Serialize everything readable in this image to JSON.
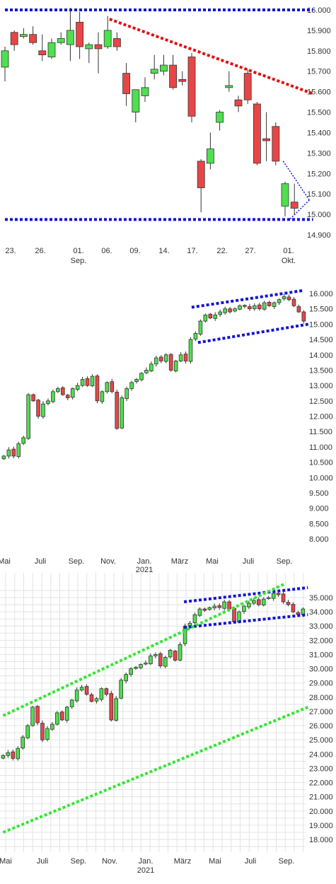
{
  "colors": {
    "up": "#4ee04e",
    "down": "#e84646",
    "blue_line": "#1414d2",
    "red_line": "#e01010",
    "green_line": "#33e633",
    "wick": "#333333"
  },
  "chart_data": [
    {
      "type": "candlestick",
      "y_tick_labels": [
        "16.000",
        "15.900",
        "15.800",
        "15.700",
        "15.600",
        "15.500",
        "15.400",
        "15.300",
        "15.200",
        "15.100",
        "15.000",
        "14.900"
      ],
      "ylim": [
        14900,
        16000
      ],
      "x_tick_labels": [
        "23.",
        "26.",
        "01.",
        "06.",
        "09.",
        "14.",
        "17.",
        "22.",
        "27.",
        "01."
      ],
      "x_sublabels": [
        "Sep.",
        "Okt."
      ],
      "grid": false,
      "candles": [
        {
          "o": 15720,
          "h": 15820,
          "l": 15650,
          "c": 15800
        },
        {
          "o": 15890,
          "h": 15900,
          "l": 15800,
          "c": 15830
        },
        {
          "o": 15870,
          "h": 15910,
          "l": 15860,
          "c": 15880
        },
        {
          "o": 15880,
          "h": 15920,
          "l": 15830,
          "c": 15840
        },
        {
          "o": 15800,
          "h": 15880,
          "l": 15750,
          "c": 15780
        },
        {
          "o": 15770,
          "h": 15860,
          "l": 15760,
          "c": 15840
        },
        {
          "o": 15840,
          "h": 15890,
          "l": 15830,
          "c": 15860
        },
        {
          "o": 15830,
          "h": 16010,
          "l": 15750,
          "c": 15900
        },
        {
          "o": 15940,
          "h": 15990,
          "l": 15760,
          "c": 15820
        },
        {
          "o": 15810,
          "h": 15840,
          "l": 15740,
          "c": 15830
        },
        {
          "o": 15830,
          "h": 15890,
          "l": 15690,
          "c": 15810
        },
        {
          "o": 15820,
          "h": 15970,
          "l": 15810,
          "c": 15900
        },
        {
          "o": 15860,
          "h": 15890,
          "l": 15800,
          "c": 15820
        },
        {
          "o": 15690,
          "h": 15740,
          "l": 15530,
          "c": 15590
        },
        {
          "o": 15500,
          "h": 15610,
          "l": 15450,
          "c": 15610
        },
        {
          "o": 15580,
          "h": 15670,
          "l": 15550,
          "c": 15620
        },
        {
          "o": 15690,
          "h": 15780,
          "l": 15660,
          "c": 15710
        },
        {
          "o": 15700,
          "h": 15780,
          "l": 15680,
          "c": 15730
        },
        {
          "o": 15730,
          "h": 15780,
          "l": 15610,
          "c": 15620
        },
        {
          "o": 15660,
          "h": 15700,
          "l": 15630,
          "c": 15650
        },
        {
          "o": 15770,
          "h": 15790,
          "l": 15450,
          "c": 15480
        },
        {
          "o": 15260,
          "h": 15270,
          "l": 15010,
          "c": 15130
        },
        {
          "o": 15250,
          "h": 15400,
          "l": 15220,
          "c": 15320
        },
        {
          "o": 15450,
          "h": 15510,
          "l": 15410,
          "c": 15500
        },
        {
          "o": 15620,
          "h": 15700,
          "l": 15600,
          "c": 15630
        },
        {
          "o": 15560,
          "h": 15580,
          "l": 15500,
          "c": 15530
        },
        {
          "o": 15690,
          "h": 15710,
          "l": 15540,
          "c": 15560
        },
        {
          "o": 15540,
          "h": 15550,
          "l": 15240,
          "c": 15250
        },
        {
          "o": 15370,
          "h": 15500,
          "l": 15260,
          "c": 15360
        },
        {
          "o": 15430,
          "h": 15450,
          "l": 15240,
          "c": 15260
        },
        {
          "o": 15040,
          "h": 15160,
          "l": 14990,
          "c": 15150
        },
        {
          "o": 15060,
          "h": 15150,
          "l": 15000,
          "c": 15030
        }
      ],
      "trendlines": [
        {
          "color": "blue",
          "from": [
            0,
            16000
          ],
          "to": [
            33,
            16000
          ]
        },
        {
          "color": "blue",
          "from": [
            0,
            14975
          ],
          "to": [
            33,
            14975
          ]
        },
        {
          "color": "red",
          "from": [
            11.2,
            15955
          ],
          "to": [
            33,
            15590
          ]
        },
        {
          "color": "blue",
          "from": [
            29.8,
            15260
          ],
          "to": [
            32.6,
            15070
          ]
        },
        {
          "color": "blue",
          "from": [
            32.6,
            15070
          ],
          "to": [
            30.5,
            14975
          ]
        }
      ]
    },
    {
      "type": "candlestick",
      "y_tick_labels": [
        "16.000",
        "15.500",
        "15.000",
        "14.500",
        "14.000",
        "13.500",
        "13.000",
        "12.500",
        "12.000",
        "11.500",
        "11.000",
        "10.500",
        "10.000",
        "9.500",
        "9.000",
        "8.500",
        "8.000"
      ],
      "ylim": [
        7500,
        16500
      ],
      "x_tick_labels": [
        "Mai",
        "Juli",
        "Sep.",
        "Nov.",
        "Jan.",
        "März",
        "Mai",
        "Juli",
        "Sep."
      ],
      "x_sublabels": [
        "2021"
      ],
      "grid": false,
      "closes": [
        10700,
        10900,
        10700,
        11100,
        11300,
        12700,
        12500,
        12000,
        12400,
        12500,
        12800,
        12900,
        12700,
        12600,
        12900,
        13000,
        13200,
        13000,
        13300,
        12500,
        12800,
        13100,
        12800,
        11600,
        12600,
        12900,
        13100,
        13200,
        13400,
        13500,
        13700,
        13900,
        13800,
        14000,
        13500,
        13800,
        14000,
        13800,
        14500,
        14700,
        15100,
        15300,
        15200,
        15300,
        15400,
        15500,
        15400,
        15500,
        15600,
        15600,
        15500,
        15600,
        15500,
        15700,
        15600,
        15700,
        15800,
        15900,
        15800,
        15600,
        15400,
        15100
      ],
      "trendlines": [
        {
          "color": "blue",
          "from": [
            38.2,
            15550
          ],
          "to": [
            61,
            16100
          ]
        },
        {
          "color": "blue",
          "from": [
            39.5,
            14400
          ],
          "to": [
            62,
            15000
          ]
        }
      ]
    },
    {
      "type": "candlestick",
      "y_tick_labels": [
        "35.000",
        "34.000",
        "33.000",
        "32.000",
        "31.000",
        "30.000",
        "29.000",
        "28.000",
        "27.000",
        "26.000",
        "25.000",
        "24.000",
        "23.000",
        "22.000",
        "21.000",
        "20.000",
        "19.000",
        "18.000"
      ],
      "ylim": [
        17000,
        36000
      ],
      "x_tick_labels": [
        "Mai",
        "Juli",
        "Sep.",
        "Nov.",
        "Jan.",
        "März",
        "Mai",
        "Juli",
        "Sep."
      ],
      "x_sublabels": [
        "2021"
      ],
      "grid": true,
      "closes": [
        23900,
        24100,
        23700,
        24400,
        25200,
        26000,
        27300,
        26200,
        25000,
        25800,
        26100,
        26900,
        26400,
        27300,
        27800,
        28500,
        28700,
        28200,
        27700,
        27900,
        28600,
        28200,
        26400,
        27900,
        29200,
        29600,
        30000,
        30100,
        30300,
        30400,
        30900,
        31000,
        30200,
        30800,
        31300,
        30600,
        31700,
        33000,
        33200,
        33800,
        34200,
        34100,
        34300,
        34400,
        34300,
        34700,
        34200,
        33300,
        34000,
        34400,
        34600,
        34800,
        34500,
        34900,
        35000,
        35300,
        35200,
        34700,
        34500,
        34000,
        33800,
        34200
      ],
      "trendlines": [
        {
          "color": "blue",
          "from": [
            36.8,
            34700
          ],
          "to": [
            62,
            35700
          ]
        },
        {
          "color": "blue",
          "from": [
            36.8,
            32900
          ],
          "to": [
            62,
            33800
          ]
        },
        {
          "color": "green",
          "from": [
            0,
            26700
          ],
          "to": [
            57.5,
            36000
          ]
        },
        {
          "color": "green",
          "from": [
            0,
            18500
          ],
          "to": [
            62,
            27300
          ]
        }
      ]
    }
  ]
}
